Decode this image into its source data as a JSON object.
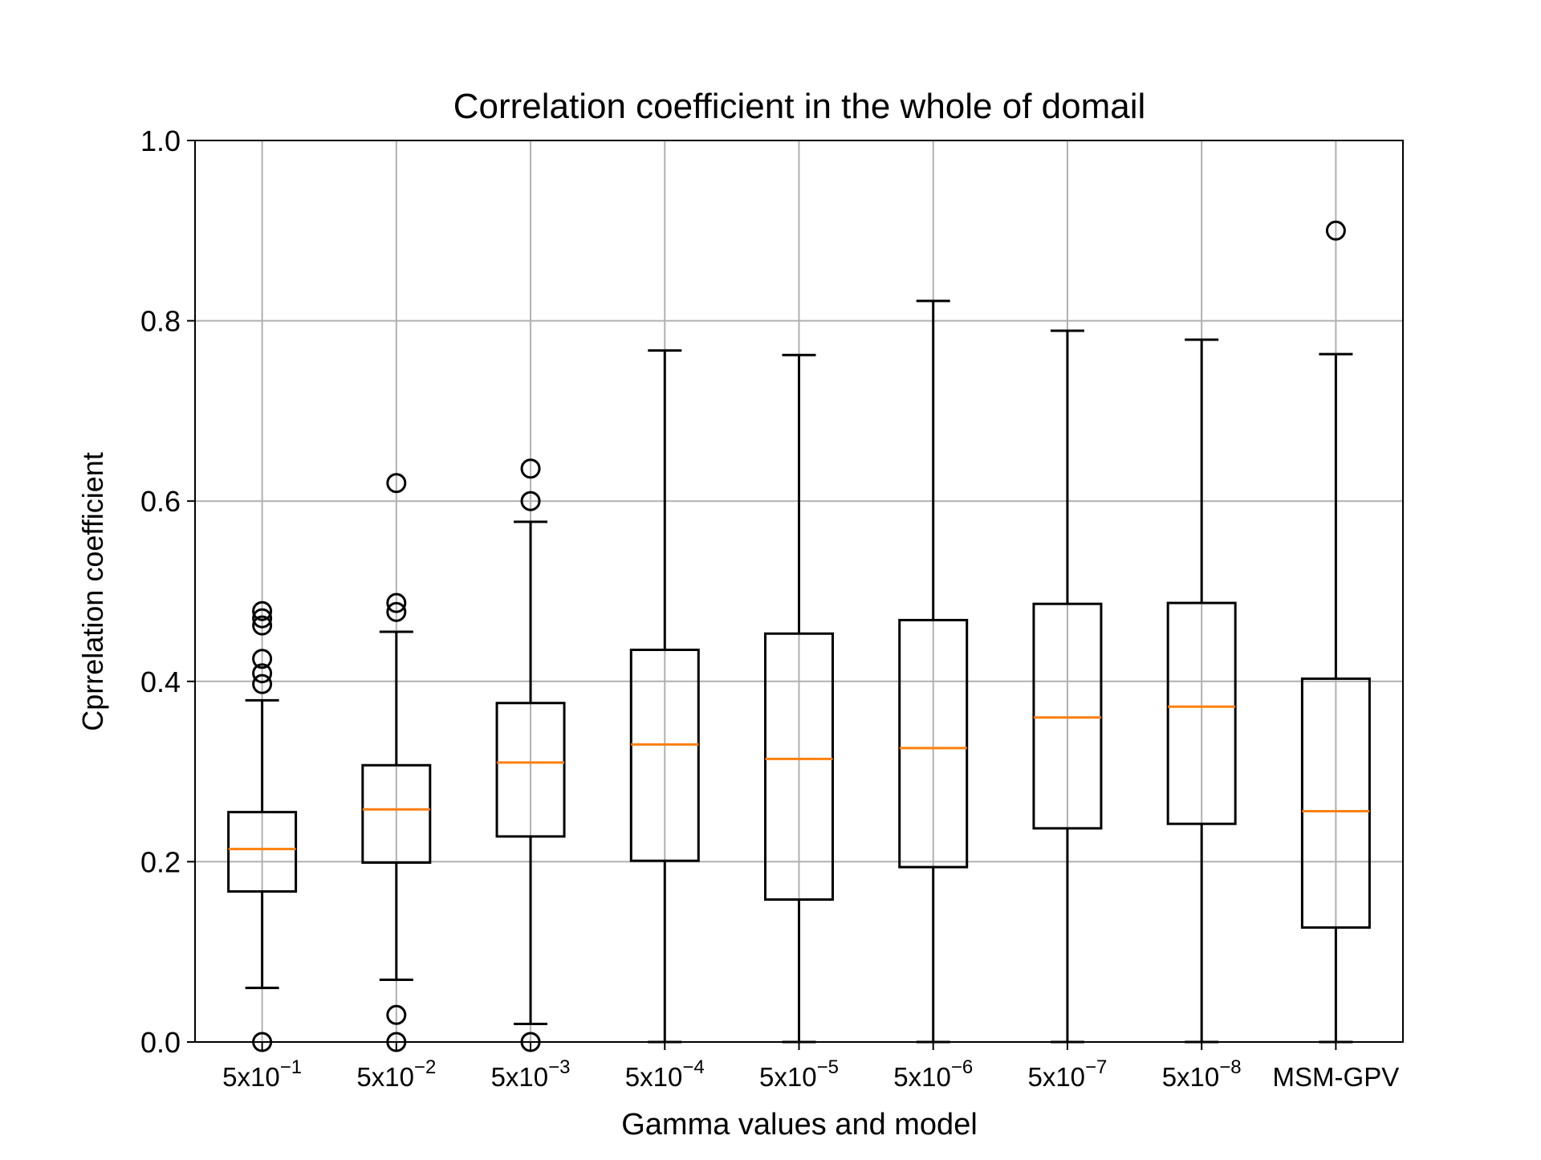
{
  "chart_data": {
    "type": "box",
    "title": "Correlation coefficient in the whole of domail",
    "xlabel": "Gamma values and model",
    "ylabel": "Cprrelation coefficient",
    "ylim": [
      0.0,
      1.0
    ],
    "yticks": [
      "0.0",
      "0.2",
      "0.4",
      "0.6",
      "0.8",
      "1.0"
    ],
    "grid": true,
    "colors": {
      "box": "#000000",
      "median": "#ff7f0e",
      "grid": "#b0b0b0"
    },
    "categories": [
      {
        "base": "5x10",
        "exp": "−1"
      },
      {
        "base": "5x10",
        "exp": "−2"
      },
      {
        "base": "5x10",
        "exp": "−3"
      },
      {
        "base": "5x10",
        "exp": "−4"
      },
      {
        "base": "5x10",
        "exp": "−5"
      },
      {
        "base": "5x10",
        "exp": "−6"
      },
      {
        "base": "5x10",
        "exp": "−7"
      },
      {
        "base": "5x10",
        "exp": "−8"
      },
      {
        "base": "MSM-GPV",
        "exp": ""
      }
    ],
    "boxes": [
      {
        "whisker_low": 0.06,
        "q1": 0.167,
        "median": 0.214,
        "q3": 0.255,
        "whisker_high": 0.379,
        "outliers": [
          0.0,
          0.397,
          0.409,
          0.425,
          0.462,
          0.47,
          0.478
        ]
      },
      {
        "whisker_low": 0.069,
        "q1": 0.199,
        "median": 0.258,
        "q3": 0.307,
        "whisker_high": 0.455,
        "outliers": [
          0.0,
          0.03,
          0.477,
          0.487,
          0.62
        ]
      },
      {
        "whisker_low": 0.02,
        "q1": 0.228,
        "median": 0.31,
        "q3": 0.376,
        "whisker_high": 0.577,
        "outliers": [
          0.0,
          0.6,
          0.636
        ]
      },
      {
        "whisker_low": 0.0,
        "q1": 0.201,
        "median": 0.33,
        "q3": 0.435,
        "whisker_high": 0.767,
        "outliers": []
      },
      {
        "whisker_low": 0.0,
        "q1": 0.158,
        "median": 0.314,
        "q3": 0.453,
        "whisker_high": 0.762,
        "outliers": []
      },
      {
        "whisker_low": 0.0,
        "q1": 0.194,
        "median": 0.326,
        "q3": 0.468,
        "whisker_high": 0.822,
        "outliers": []
      },
      {
        "whisker_low": 0.0,
        "q1": 0.237,
        "median": 0.36,
        "q3": 0.486,
        "whisker_high": 0.789,
        "outliers": []
      },
      {
        "whisker_low": 0.0,
        "q1": 0.242,
        "median": 0.372,
        "q3": 0.487,
        "whisker_high": 0.779,
        "outliers": []
      },
      {
        "whisker_low": 0.0,
        "q1": 0.127,
        "median": 0.256,
        "q3": 0.403,
        "whisker_high": 0.763,
        "outliers": [
          0.9
        ]
      }
    ]
  }
}
